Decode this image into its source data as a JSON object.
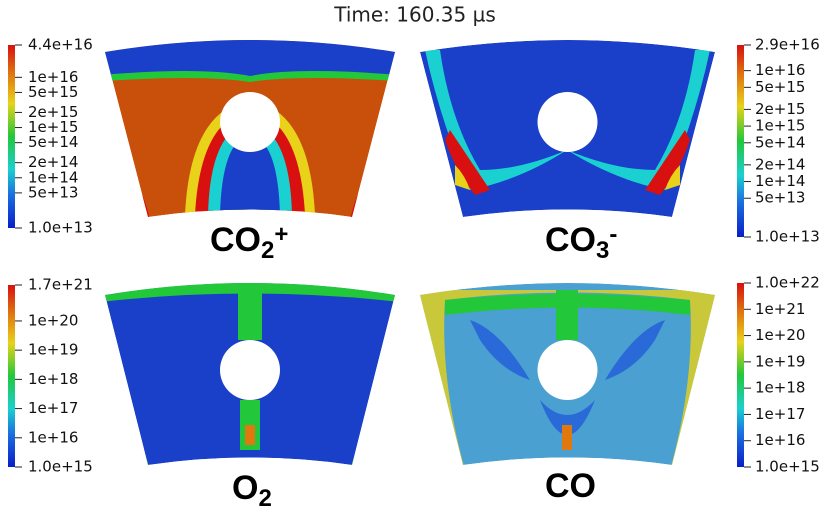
{
  "title": "Time: 160.35 µs",
  "panels": [
    {
      "label": {
        "base": "CO",
        "sub": "2",
        "sup": "+"
      },
      "colorbar": [
        "4.4e+16",
        "1e+16",
        "5e+15",
        "2e+15",
        "1e+15",
        "5e+14",
        "2e+14",
        "1e+14",
        "5e+13",
        "1.0e+13"
      ]
    },
    {
      "label": {
        "base": "CO",
        "sub": "3",
        "sup": "-"
      },
      "colorbar": [
        "2.9e+16",
        "1e+16",
        "5e+15",
        "2e+15",
        "1e+15",
        "5e+14",
        "2e+14",
        "1e+14",
        "5e+13",
        "1.0e+13"
      ]
    },
    {
      "label": {
        "base": "O",
        "sub": "2"
      },
      "colorbar": [
        "1.7e+21",
        "1e+20",
        "1e+19",
        "1e+18",
        "1e+17",
        "1e+16",
        "1.0e+15"
      ]
    },
    {
      "label": {
        "base": "CO"
      },
      "colorbar": [
        "1.0e+22",
        "1e+21",
        "1e+20",
        "1e+19",
        "1e+18",
        "1e+17",
        "1e+16",
        "1.0e+15"
      ]
    }
  ]
}
